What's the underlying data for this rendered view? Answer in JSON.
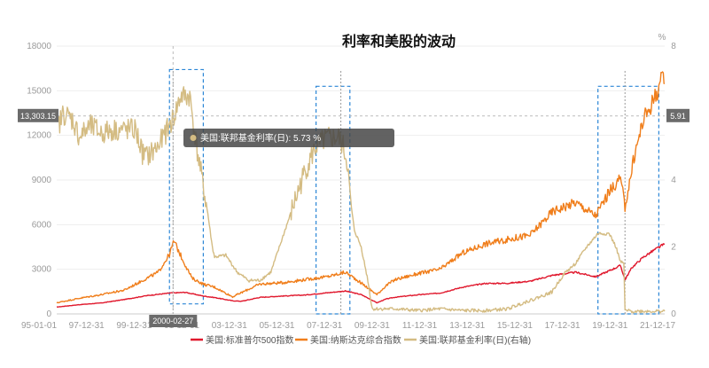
{
  "chart_data": {
    "type": "line",
    "title": "利率和美股的波动",
    "right_unit": "%",
    "x_labels": [
      "95-01-01",
      "97-12-31",
      "99-12-31",
      "01-12-31",
      "03-12-31",
      "05-12-31",
      "07-12-31",
      "09-12-31",
      "11-12-31",
      "13-12-31",
      "15-12-31",
      "17-12-31",
      "19-12-31",
      "21-12-17"
    ],
    "x_range": [
      1995.0,
      2021.96
    ],
    "left_axis": {
      "ticks": [
        "0",
        "3000",
        "6000",
        "9000",
        "12000",
        "15000",
        "18000"
      ],
      "range": [
        0,
        18000
      ]
    },
    "right_axis": {
      "ticks": [
        "0",
        "2",
        "4",
        "6",
        "8"
      ],
      "range": [
        0,
        8
      ]
    },
    "crosshair": {
      "date_label": "2000-02-27",
      "date_value": 2000.16,
      "left_value_label": "13,303.15",
      "left_value": 13303.15,
      "right_value_label": "5.91",
      "right_value": 5.91
    },
    "tooltip": {
      "text": "美国:联邦基金利率(日): 5.73 %"
    },
    "highlight_boxes": [
      {
        "x_range": [
          2000.0,
          2001.5
        ],
        "y_range_right": [
          0.3,
          7.3
        ]
      },
      {
        "x_range": [
          2006.5,
          2008.0
        ],
        "y_range_right": [
          0.0,
          6.8
        ]
      },
      {
        "x_range": [
          2019.0,
          2021.7
        ],
        "y_range_right": [
          0.0,
          6.8
        ]
      }
    ],
    "event_lines": [
      2000.16,
      2007.6,
      2020.2
    ],
    "legend_position": "bottom",
    "series": [
      {
        "name": "美国:标准普尔500指数",
        "color": "#e0182d",
        "axis": "left",
        "x": [
          1995.0,
          1996.0,
          1997.0,
          1998.0,
          1999.0,
          2000.0,
          2000.7,
          2001.5,
          2002.0,
          2002.8,
          2003.2,
          2004.0,
          2005.0,
          2006.0,
          2007.0,
          2007.8,
          2008.5,
          2009.2,
          2009.6,
          2010.0,
          2011.0,
          2012.0,
          2013.0,
          2014.0,
          2015.0,
          2016.0,
          2017.0,
          2018.0,
          2018.9,
          2019.5,
          2020.0,
          2020.2,
          2020.5,
          2021.0,
          2021.5,
          2021.96
        ],
        "y": [
          460,
          620,
          740,
          970,
          1230,
          1400,
          1450,
          1200,
          1100,
          880,
          850,
          1110,
          1200,
          1270,
          1420,
          1540,
          1300,
          750,
          1000,
          1120,
          1280,
          1400,
          1800,
          2050,
          2060,
          2200,
          2600,
          2800,
          2500,
          2900,
          3250,
          2300,
          3100,
          3800,
          4300,
          4700
        ]
      },
      {
        "name": "美国:纳斯达克综合指数",
        "color": "#f07e1b",
        "axis": "left",
        "x": [
          1995.0,
          1996.0,
          1997.0,
          1998.0,
          1999.0,
          1999.5,
          2000.0,
          2000.2,
          2000.6,
          2001.0,
          2001.5,
          2002.0,
          2002.8,
          2003.5,
          2004.0,
          2005.0,
          2006.0,
          2007.0,
          2007.8,
          2008.3,
          2009.2,
          2009.6,
          2010.0,
          2011.0,
          2012.0,
          2013.0,
          2014.0,
          2015.0,
          2016.0,
          2017.0,
          2018.0,
          2018.9,
          2019.5,
          2020.0,
          2020.2,
          2020.6,
          2021.0,
          2021.5,
          2021.8,
          2021.96
        ],
        "y": [
          750,
          1050,
          1300,
          1600,
          2400,
          2800,
          4000,
          4900,
          3600,
          2400,
          2000,
          1800,
          1150,
          1650,
          2000,
          2100,
          2300,
          2500,
          2800,
          2300,
          1300,
          1900,
          2300,
          2700,
          3000,
          4100,
          4700,
          5000,
          5300,
          6900,
          7500,
          6600,
          8200,
          9100,
          7200,
          10500,
          13000,
          14500,
          15700,
          15500
        ]
      },
      {
        "name": "美国:联邦基金利率(日)(右轴)",
        "color": "#d4bc83",
        "axis": "right",
        "x": [
          1995.0,
          1995.3,
          1995.7,
          1996.0,
          1996.5,
          1997.0,
          1997.5,
          1998.0,
          1998.5,
          1998.8,
          1999.0,
          1999.5,
          1999.9,
          2000.2,
          2000.5,
          2000.9,
          2001.0,
          2001.2,
          2001.5,
          2001.7,
          2001.9,
          2002.0,
          2002.5,
          2003.0,
          2003.5,
          2004.0,
          2004.5,
          2005.0,
          2005.5,
          2006.0,
          2006.5,
          2007.0,
          2007.5,
          2007.7,
          2007.9,
          2008.0,
          2008.2,
          2008.5,
          2008.8,
          2008.95,
          2009.0,
          2010.0,
          2011.0,
          2012.0,
          2013.0,
          2014.0,
          2015.0,
          2015.95,
          2016.0,
          2016.95,
          2017.0,
          2017.5,
          2018.0,
          2018.5,
          2019.0,
          2019.5,
          2019.8,
          2020.0,
          2020.15,
          2020.2,
          2020.5,
          2021.0,
          2021.5,
          2021.96
        ],
        "y": [
          5.5,
          6.0,
          5.8,
          5.3,
          5.6,
          5.4,
          5.5,
          5.5,
          5.5,
          4.8,
          4.7,
          5.0,
          5.5,
          5.9,
          6.5,
          6.5,
          6.0,
          5.0,
          3.8,
          3.0,
          2.0,
          1.7,
          1.75,
          1.25,
          1.0,
          1.0,
          1.25,
          2.25,
          3.25,
          4.25,
          5.0,
          5.25,
          5.25,
          5.0,
          4.5,
          3.5,
          2.5,
          2.0,
          1.0,
          0.3,
          0.15,
          0.15,
          0.1,
          0.15,
          0.1,
          0.1,
          0.15,
          0.4,
          0.4,
          0.65,
          0.7,
          1.2,
          1.5,
          2.0,
          2.4,
          2.4,
          2.0,
          1.55,
          1.5,
          0.1,
          0.08,
          0.08,
          0.08,
          0.08
        ]
      }
    ]
  }
}
